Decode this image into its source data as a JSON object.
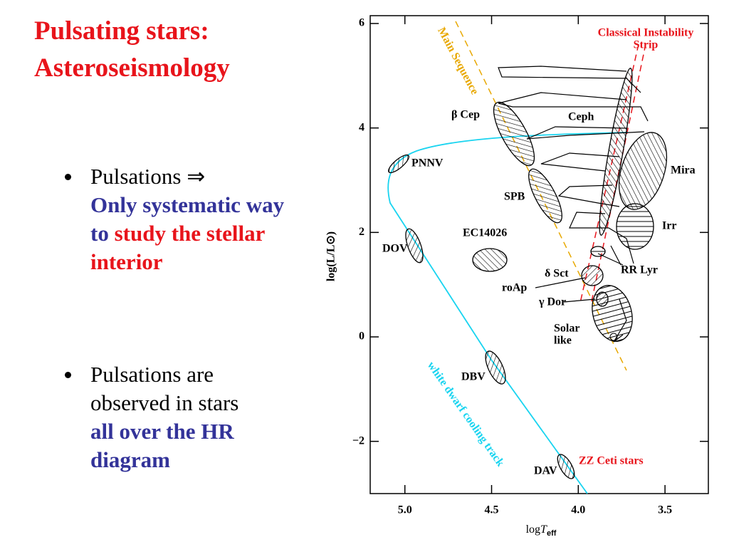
{
  "slide": {
    "title": [
      "Pulsating stars:",
      "Asteroseismology"
    ],
    "bullets": [
      [
        "Pulsations ⇒",
        "Only systematic way to",
        "study the stellar interior"
      ],
      [
        "Pulsations are observed in stars",
        "all over the HR diagram"
      ]
    ]
  },
  "chart_data": {
    "type": "hr-diagram",
    "xlabel": [
      "log",
      "T",
      "eff"
    ],
    "ylabel": "log(L/L⊙)",
    "xlim": [
      5.2,
      3.25
    ],
    "ylim": [
      -3,
      6.15
    ],
    "xticks": [
      {
        "value": 5,
        "label": "5.0"
      },
      4.5,
      {
        "value": 4,
        "label": "4.0"
      },
      3.5
    ],
    "yticks": [
      {
        "value": -2,
        "label": "−2"
      },
      0,
      2,
      4,
      6
    ],
    "annotations": [
      "PNNV",
      "β Cep",
      "Ceph",
      "Mira",
      "SPB",
      "EC14026",
      "DOV",
      "Irr",
      "δ Sct",
      "roAp",
      "γ Dor",
      "RR Lyr",
      [
        "Solar",
        "like"
      ],
      "DBV",
      "DAV",
      "ZZ Ceti stars",
      [
        "Classical Instability",
        "Strip"
      ],
      "Main Sequence",
      "white dwarf cooling track"
    ]
  }
}
